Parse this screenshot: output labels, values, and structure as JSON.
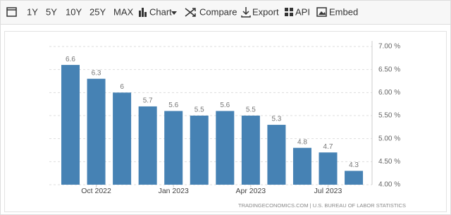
{
  "toolbar": [
    "1Y",
    "5Y",
    "10Y",
    "25Y",
    "MAX",
    "Chart",
    "Compare",
    "Export",
    "API",
    "Embed"
  ],
  "chart_data": {
    "type": "bar",
    "categories": [
      null,
      "Oct 2022",
      null,
      null,
      "Jan 2023",
      null,
      null,
      "Apr 2023",
      null,
      null,
      "Jul 2023",
      null
    ],
    "values": [
      6.6,
      6.3,
      6,
      5.7,
      5.6,
      5.5,
      5.6,
      5.5,
      5.3,
      4.8,
      4.7,
      4.3
    ],
    "color": "#4682b4",
    "ylim": [
      4,
      7
    ],
    "yticks": [
      {
        "value": 4,
        "label": "4.00 %"
      },
      {
        "value": 4.5,
        "label": "4.50 %"
      },
      {
        "value": 5,
        "label": "5.00 %"
      },
      {
        "value": 5.5,
        "label": "5.50 %"
      },
      {
        "value": 6,
        "label": "6.00 %"
      },
      {
        "value": 6.5,
        "label": "6.50 %"
      },
      {
        "value": 7,
        "label": "7.00 %"
      }
    ],
    "grid": true,
    "source": "TRADINGECONOMICS.COM | U.S. BUREAU OF LABOR STATISTICS"
  }
}
